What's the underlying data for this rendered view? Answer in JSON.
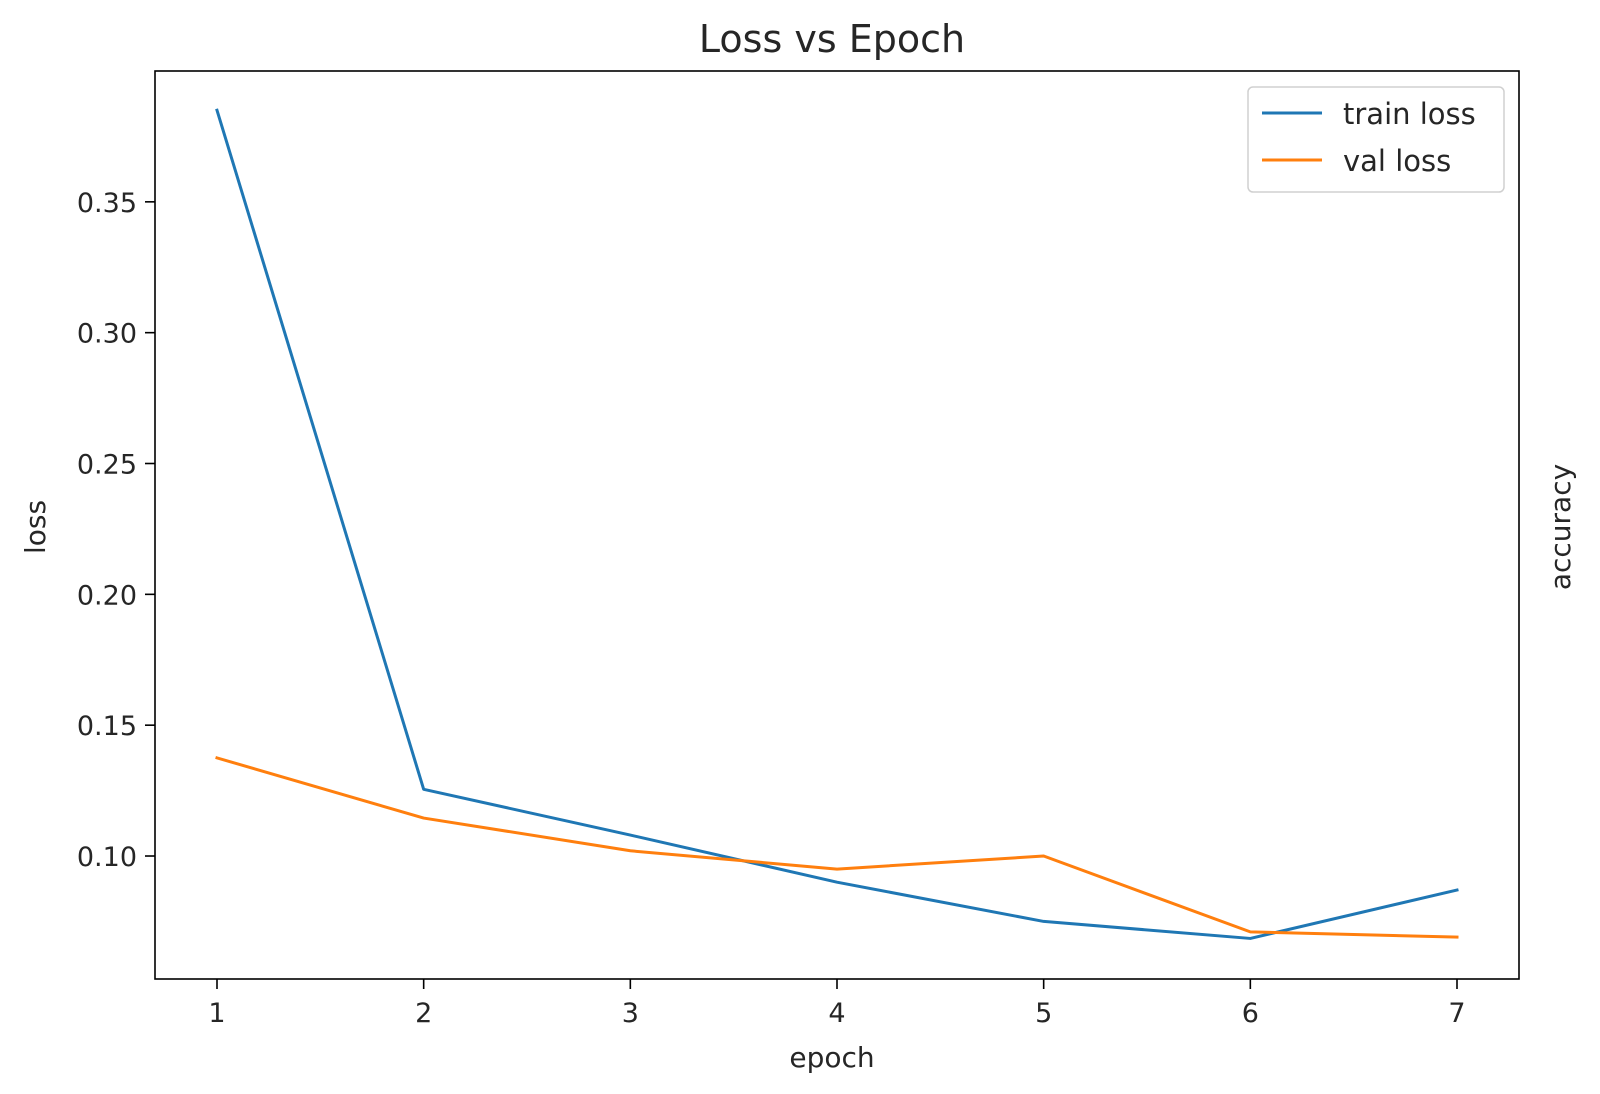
{
  "chart_data": {
    "type": "line",
    "title": "Loss vs Epoch",
    "xlabel": "epoch",
    "ylabel": "loss",
    "y2label": "accuracy",
    "x": [
      1,
      2,
      3,
      4,
      5,
      6,
      7
    ],
    "xlim": [
      0.7,
      7.3
    ],
    "ylim": [
      0.053,
      0.4
    ],
    "xticks": [
      "1",
      "2",
      "3",
      "4",
      "5",
      "6",
      "7"
    ],
    "yticks": [
      "0.10",
      "0.15",
      "0.20",
      "0.25",
      "0.30",
      "0.35"
    ],
    "ytick_values": [
      0.1,
      0.15,
      0.2,
      0.25,
      0.3,
      0.35
    ],
    "grid": false,
    "legend_position": "top-right",
    "series": [
      {
        "name": "train loss",
        "color": "#1f77b4",
        "values": [
          0.385,
          0.1255,
          0.108,
          0.09,
          0.075,
          0.0685,
          0.087
        ]
      },
      {
        "name": "val loss",
        "color": "#ff7f0e",
        "values": [
          0.1375,
          0.1145,
          0.102,
          0.095,
          0.1,
          0.071,
          0.069
        ]
      }
    ]
  }
}
